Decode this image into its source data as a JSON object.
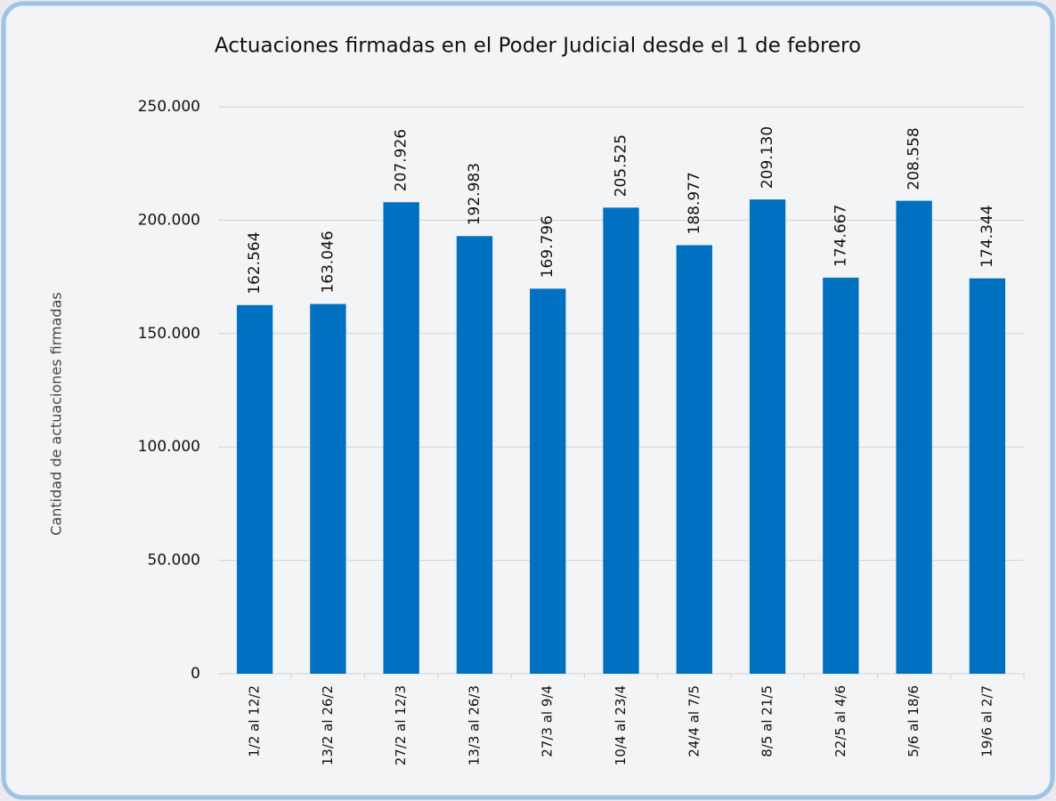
{
  "chart_data": {
    "type": "bar",
    "title": "Actuaciones firmadas en el Poder Judicial desde el 1 de febrero",
    "y_label": "Cantidad de actuaciones firmadas",
    "categories": [
      "1/2 al 12/2",
      "13/2 al 26/2",
      "27/2 al 12/3",
      "13/3 al 26/3",
      "27/3 al 9/4",
      "10/4 al 23/4",
      "24/4 al 7/5",
      "8/5 al 21/5",
      "22/5 al 4/6",
      "5/6 al 18/6",
      "19/6 al 2/7"
    ],
    "values": [
      162564,
      163046,
      207926,
      192983,
      169796,
      205525,
      188977,
      209130,
      174667,
      208558,
      174344
    ],
    "value_labels": [
      "162.564",
      "163.046",
      "207.926",
      "192.983",
      "169.796",
      "205.525",
      "188.977",
      "209.130",
      "174.667",
      "208.558",
      "174.344"
    ],
    "color": "#0070c0",
    "ylim": [
      0,
      250000
    ],
    "yticks": [
      0,
      {
        "value": 50000,
        "label": "50.000"
      },
      {
        "value": 100000,
        "label": "100.000"
      },
      {
        "value": 150000,
        "label": "150.000"
      },
      {
        "value": 200000,
        "label": "200.000"
      },
      {
        "value": 250000,
        "label": "250.000"
      }
    ],
    "grid": true
  }
}
